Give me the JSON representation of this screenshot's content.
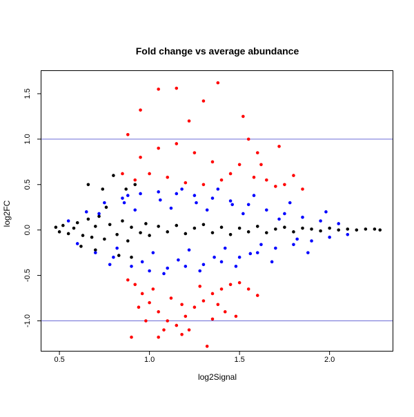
{
  "chart_data": {
    "type": "scatter",
    "title": "Fold change vs average abundance",
    "xlabel": "log2Signal",
    "ylabel": "log2FC",
    "xlim": [
      0.4,
      2.35
    ],
    "ylim": [
      -1.33,
      1.75
    ],
    "xticks": [
      0.5,
      1.0,
      1.5,
      2.0
    ],
    "xtick_labels": [
      "0.5",
      "1.0",
      "1.5",
      "2.0"
    ],
    "yticks": [
      -1.0,
      -0.5,
      0.0,
      0.5,
      1.0,
      1.5
    ],
    "ytick_labels": [
      "-1.0",
      "-0.5",
      "0.0",
      "0.5",
      "1.0",
      "1.5"
    ],
    "hlines": [
      1.0,
      -1.0
    ],
    "hline_color": "#6b6bd6",
    "grid": false,
    "legend": "none",
    "series": [
      {
        "color": "#000000",
        "points": [
          [
            0.48,
            0.03
          ],
          [
            0.5,
            -0.02
          ],
          [
            0.52,
            0.05
          ],
          [
            0.55,
            -0.04
          ],
          [
            0.58,
            0.02
          ],
          [
            0.6,
            0.08
          ],
          [
            0.63,
            -0.06
          ],
          [
            0.66,
            0.12
          ],
          [
            0.68,
            -0.08
          ],
          [
            0.7,
            0.04
          ],
          [
            0.72,
            0.15
          ],
          [
            0.75,
            -0.1
          ],
          [
            0.78,
            0.06
          ],
          [
            0.8,
            0.6
          ],
          [
            0.82,
            -0.05
          ],
          [
            0.85,
            0.1
          ],
          [
            0.88,
            -0.12
          ],
          [
            0.9,
            0.03
          ],
          [
            0.92,
            0.5
          ],
          [
            0.95,
            -0.03
          ],
          [
            0.98,
            0.07
          ],
          [
            1.0,
            -0.06
          ],
          [
            1.05,
            0.04
          ],
          [
            1.1,
            -0.02
          ],
          [
            1.15,
            0.05
          ],
          [
            1.2,
            -0.04
          ],
          [
            1.25,
            0.02
          ],
          [
            1.3,
            0.06
          ],
          [
            1.35,
            -0.03
          ],
          [
            1.4,
            0.03
          ],
          [
            1.45,
            -0.05
          ],
          [
            1.5,
            0.02
          ],
          [
            1.55,
            -0.02
          ],
          [
            1.6,
            0.04
          ],
          [
            1.65,
            -0.03
          ],
          [
            1.7,
            0.01
          ],
          [
            1.75,
            0.03
          ],
          [
            1.8,
            -0.02
          ],
          [
            1.85,
            0.02
          ],
          [
            1.9,
            0.01
          ],
          [
            1.95,
            -0.01
          ],
          [
            2.0,
            0.02
          ],
          [
            2.05,
            0.0
          ],
          [
            2.1,
            0.01
          ],
          [
            2.15,
            0.0
          ],
          [
            2.2,
            0.01
          ],
          [
            2.25,
            0.01
          ],
          [
            2.28,
            0.0
          ],
          [
            0.62,
            -0.18
          ],
          [
            0.7,
            -0.22
          ],
          [
            0.76,
            0.25
          ],
          [
            0.83,
            -0.28
          ],
          [
            0.87,
            0.45
          ],
          [
            0.74,
            0.45
          ],
          [
            0.66,
            0.5
          ],
          [
            0.9,
            -0.3
          ]
        ]
      },
      {
        "color": "#0000ff",
        "points": [
          [
            0.55,
            0.1
          ],
          [
            0.6,
            -0.15
          ],
          [
            0.65,
            0.2
          ],
          [
            0.7,
            -0.25
          ],
          [
            0.75,
            0.3
          ],
          [
            0.8,
            -0.3
          ],
          [
            0.85,
            0.35
          ],
          [
            0.9,
            -0.4
          ],
          [
            0.95,
            0.4
          ],
          [
            1.0,
            -0.45
          ],
          [
            1.05,
            0.42
          ],
          [
            1.1,
            -0.42
          ],
          [
            1.15,
            0.4
          ],
          [
            1.2,
            -0.4
          ],
          [
            1.25,
            0.38
          ],
          [
            1.3,
            -0.38
          ],
          [
            1.35,
            0.35
          ],
          [
            1.4,
            -0.35
          ],
          [
            1.45,
            0.32
          ],
          [
            1.5,
            -0.3
          ],
          [
            1.55,
            0.28
          ],
          [
            1.6,
            -0.25
          ],
          [
            1.65,
            0.22
          ],
          [
            1.7,
            -0.2
          ],
          [
            1.75,
            0.18
          ],
          [
            1.8,
            -0.16
          ],
          [
            1.85,
            0.14
          ],
          [
            1.9,
            -0.12
          ],
          [
            1.95,
            0.1
          ],
          [
            2.0,
            -0.08
          ],
          [
            2.05,
            0.07
          ],
          [
            2.1,
            -0.05
          ],
          [
            0.72,
            0.18
          ],
          [
            0.82,
            -0.2
          ],
          [
            0.92,
            0.22
          ],
          [
            1.02,
            -0.25
          ],
          [
            1.12,
            0.24
          ],
          [
            1.22,
            -0.22
          ],
          [
            1.32,
            0.22
          ],
          [
            1.42,
            -0.2
          ],
          [
            1.52,
            0.18
          ],
          [
            1.62,
            -0.16
          ],
          [
            1.72,
            0.12
          ],
          [
            1.82,
            -0.1
          ],
          [
            0.86,
            0.3
          ],
          [
            0.96,
            -0.35
          ],
          [
            1.06,
            0.33
          ],
          [
            1.16,
            -0.33
          ],
          [
            1.26,
            0.3
          ],
          [
            1.36,
            -0.3
          ],
          [
            1.46,
            0.28
          ],
          [
            1.56,
            -0.26
          ],
          [
            0.78,
            -0.38
          ],
          [
            0.88,
            0.38
          ],
          [
            1.08,
            -0.48
          ],
          [
            1.18,
            0.45
          ],
          [
            1.28,
            -0.45
          ],
          [
            1.38,
            0.45
          ],
          [
            1.48,
            -0.4
          ],
          [
            1.58,
            0.38
          ],
          [
            1.68,
            -0.35
          ],
          [
            1.78,
            0.3
          ],
          [
            1.88,
            -0.25
          ],
          [
            1.98,
            0.2
          ]
        ]
      },
      {
        "color": "#ff0000",
        "points": [
          [
            0.88,
            1.05
          ],
          [
            0.95,
            1.32
          ],
          [
            1.05,
            1.55
          ],
          [
            1.15,
            1.56
          ],
          [
            1.22,
            1.2
          ],
          [
            1.3,
            1.42
          ],
          [
            1.38,
            1.62
          ],
          [
            1.52,
            1.25
          ],
          [
            1.55,
            1.0
          ],
          [
            1.6,
            0.85
          ],
          [
            1.5,
            0.72
          ],
          [
            1.45,
            0.62
          ],
          [
            1.4,
            0.55
          ],
          [
            1.3,
            0.5
          ],
          [
            1.2,
            0.52
          ],
          [
            1.1,
            0.58
          ],
          [
            1.0,
            0.62
          ],
          [
            0.92,
            0.55
          ],
          [
            0.85,
            0.62
          ],
          [
            0.95,
            0.8
          ],
          [
            1.05,
            0.9
          ],
          [
            1.15,
            0.95
          ],
          [
            1.25,
            0.85
          ],
          [
            1.35,
            0.75
          ],
          [
            1.65,
            0.55
          ],
          [
            1.7,
            0.48
          ],
          [
            1.75,
            0.5
          ],
          [
            1.8,
            0.6
          ],
          [
            1.85,
            0.45
          ],
          [
            1.72,
            0.92
          ],
          [
            1.62,
            0.72
          ],
          [
            1.58,
            0.58
          ],
          [
            0.88,
            -0.55
          ],
          [
            0.92,
            -0.6
          ],
          [
            0.96,
            -0.7
          ],
          [
            1.0,
            -0.8
          ],
          [
            1.05,
            -0.9
          ],
          [
            1.1,
            -1.0
          ],
          [
            1.15,
            -1.05
          ],
          [
            1.2,
            -0.95
          ],
          [
            1.25,
            -0.85
          ],
          [
            1.3,
            -0.78
          ],
          [
            1.35,
            -0.7
          ],
          [
            1.4,
            -0.65
          ],
          [
            1.45,
            -0.6
          ],
          [
            1.5,
            -0.58
          ],
          [
            1.55,
            -0.65
          ],
          [
            1.6,
            -0.72
          ],
          [
            0.9,
            -1.18
          ],
          [
            1.05,
            -1.18
          ],
          [
            1.18,
            -1.15
          ],
          [
            1.22,
            -1.1
          ],
          [
            1.32,
            -1.28
          ],
          [
            1.35,
            -0.98
          ],
          [
            1.08,
            -1.1
          ],
          [
            0.98,
            -1.0
          ],
          [
            1.12,
            -0.75
          ],
          [
            1.02,
            -0.65
          ],
          [
            1.28,
            -0.62
          ],
          [
            1.42,
            -0.9
          ],
          [
            1.48,
            -0.95
          ],
          [
            1.38,
            -0.82
          ],
          [
            0.94,
            -0.85
          ],
          [
            1.18,
            -0.82
          ]
        ]
      }
    ]
  }
}
